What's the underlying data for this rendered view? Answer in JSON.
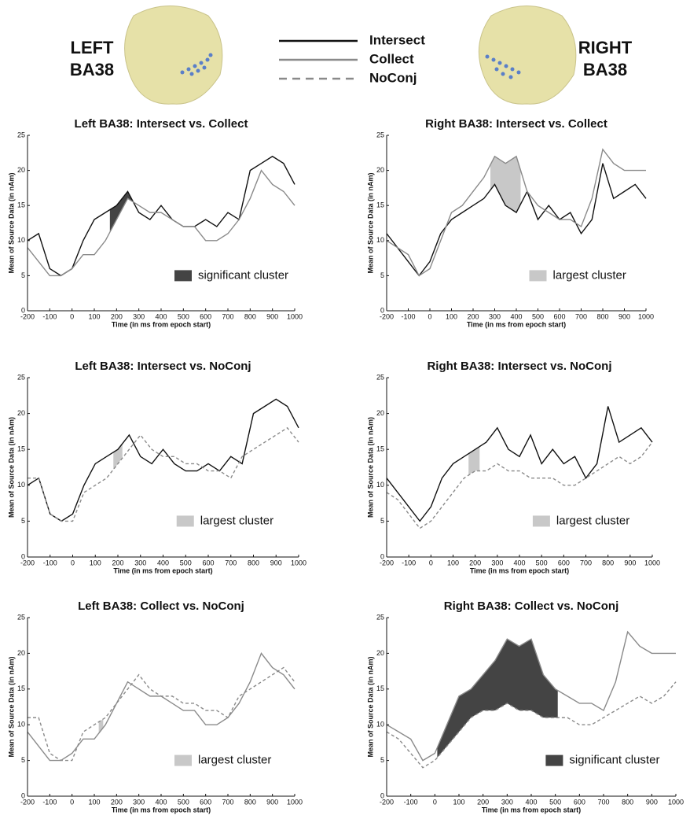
{
  "header": {
    "left": [
      "LEFT",
      "BA38"
    ],
    "right": [
      "RIGHT",
      "BA38"
    ]
  },
  "chart_data": [
    {
      "type": "line",
      "title": "Left BA38: Intersect vs. Collect",
      "xlabel": "Time (in ms from epoch start)",
      "ylabel": "Mean of Source Data (in nAm)",
      "x": [
        -200,
        -150,
        -100,
        -50,
        0,
        50,
        100,
        150,
        200,
        250,
        300,
        350,
        400,
        450,
        500,
        550,
        600,
        650,
        700,
        750,
        800,
        850,
        900,
        950,
        1000
      ],
      "series": [
        {
          "name": "Intersect",
          "color": "#111111",
          "dashed": false,
          "values": [
            10,
            11,
            6,
            5,
            6,
            10,
            13,
            14,
            15,
            17,
            14,
            13,
            15,
            13,
            12,
            12,
            13,
            12,
            14,
            13,
            20,
            21,
            22,
            21,
            18
          ]
        },
        {
          "name": "Collect",
          "color": "#8a8a8a",
          "dashed": false,
          "values": [
            9,
            7,
            5,
            5,
            6,
            8,
            8,
            10,
            13,
            16,
            15,
            14,
            14,
            13,
            12,
            12,
            10,
            10,
            11,
            13,
            16,
            20,
            18,
            17,
            15
          ]
        }
      ],
      "cluster": {
        "label": "significant cluster",
        "color": "#444444",
        "x_range": [
          170,
          270
        ]
      },
      "xlim": [
        -200,
        1000
      ],
      "ylim": [
        0,
        25
      ],
      "xticks": [
        -200,
        -100,
        0,
        100,
        200,
        300,
        400,
        500,
        600,
        700,
        800,
        900,
        1000
      ],
      "yticks": [
        0,
        5,
        10,
        15,
        20,
        25
      ]
    },
    {
      "type": "line",
      "title": "Right BA38: Intersect vs. Collect",
      "xlabel": "Time (in ms from epoch start)",
      "ylabel": "Mean of Source Data (in nAm)",
      "x": [
        -200,
        -150,
        -100,
        -50,
        0,
        50,
        100,
        150,
        200,
        250,
        300,
        350,
        400,
        450,
        500,
        550,
        600,
        650,
        700,
        750,
        800,
        850,
        900,
        950,
        1000
      ],
      "series": [
        {
          "name": "Intersect",
          "color": "#111111",
          "dashed": false,
          "values": [
            11,
            9,
            7,
            5,
            7,
            11,
            13,
            14,
            15,
            16,
            18,
            15,
            14,
            17,
            13,
            15,
            13,
            14,
            11,
            13,
            21,
            16,
            17,
            18,
            16
          ]
        },
        {
          "name": "Collect",
          "color": "#8a8a8a",
          "dashed": false,
          "values": [
            10,
            9,
            8,
            5,
            6,
            10,
            14,
            15,
            17,
            19,
            22,
            21,
            22,
            17,
            15,
            14,
            13,
            13,
            12,
            16,
            23,
            21,
            20,
            20,
            20
          ]
        }
      ],
      "cluster": {
        "label": "largest cluster",
        "color": "#c8c8c8",
        "x_range": [
          280,
          420
        ]
      },
      "xlim": [
        -200,
        1000
      ],
      "ylim": [
        0,
        25
      ],
      "xticks": [
        -200,
        -100,
        0,
        100,
        200,
        300,
        400,
        500,
        600,
        700,
        800,
        900,
        1000
      ],
      "yticks": [
        0,
        5,
        10,
        15,
        20,
        25
      ]
    },
    {
      "type": "line",
      "title": "Left BA38: Intersect vs. NoConj",
      "xlabel": "Time (in ms from epoch start)",
      "ylabel": "Mean of Source Data (in nAm)",
      "x": [
        -200,
        -150,
        -100,
        -50,
        0,
        50,
        100,
        150,
        200,
        250,
        300,
        350,
        400,
        450,
        500,
        550,
        600,
        650,
        700,
        750,
        800,
        850,
        900,
        950,
        1000
      ],
      "series": [
        {
          "name": "Intersect",
          "color": "#111111",
          "dashed": false,
          "values": [
            10,
            11,
            6,
            5,
            6,
            10,
            13,
            14,
            15,
            17,
            14,
            13,
            15,
            13,
            12,
            12,
            13,
            12,
            14,
            13,
            20,
            21,
            22,
            21,
            18
          ]
        },
        {
          "name": "NoConj",
          "color": "#8a8a8a",
          "dashed": true,
          "values": [
            11,
            11,
            6,
            5,
            5,
            9,
            10,
            11,
            13,
            15,
            17,
            15,
            14,
            14,
            13,
            13,
            12,
            12,
            11,
            14,
            15,
            16,
            17,
            18,
            16
          ]
        }
      ],
      "cluster": {
        "label": "largest cluster",
        "color": "#c8c8c8",
        "x_range": [
          180,
          220
        ]
      },
      "xlim": [
        -200,
        1000
      ],
      "ylim": [
        0,
        25
      ],
      "xticks": [
        -200,
        -100,
        0,
        100,
        200,
        300,
        400,
        500,
        600,
        700,
        800,
        900,
        1000
      ],
      "yticks": [
        0,
        5,
        10,
        15,
        20,
        25
      ]
    },
    {
      "type": "line",
      "title": "Right BA38: Intersect vs. NoConj",
      "xlabel": "Time (in ms from epoch start)",
      "ylabel": "Mean of Source Data (in nAm)",
      "x": [
        -200,
        -150,
        -100,
        -50,
        0,
        50,
        100,
        150,
        200,
        250,
        300,
        350,
        400,
        450,
        500,
        550,
        600,
        650,
        700,
        750,
        800,
        850,
        900,
        950,
        1000
      ],
      "series": [
        {
          "name": "Intersect",
          "color": "#111111",
          "dashed": false,
          "values": [
            11,
            9,
            7,
            5,
            7,
            11,
            13,
            14,
            15,
            16,
            18,
            15,
            14,
            17,
            13,
            15,
            13,
            14,
            11,
            13,
            21,
            16,
            17,
            18,
            16
          ]
        },
        {
          "name": "NoConj",
          "color": "#8a8a8a",
          "dashed": true,
          "values": [
            9,
            8,
            6,
            4,
            5,
            7,
            9,
            11,
            12,
            12,
            13,
            12,
            12,
            11,
            11,
            11,
            10,
            10,
            11,
            12,
            13,
            14,
            13,
            14,
            16
          ]
        }
      ],
      "cluster": {
        "label": "largest cluster",
        "color": "#c8c8c8",
        "x_range": [
          170,
          220
        ]
      },
      "xlim": [
        -200,
        1000
      ],
      "ylim": [
        0,
        25
      ],
      "xticks": [
        -200,
        -100,
        0,
        100,
        200,
        300,
        400,
        500,
        600,
        700,
        800,
        900,
        1000
      ],
      "yticks": [
        0,
        5,
        10,
        15,
        20,
        25
      ]
    },
    {
      "type": "line",
      "title": "Left BA38: Collect vs. NoConj",
      "xlabel": "Time (in ms from epoch start)",
      "ylabel": "Mean of Source Data (in nAm)",
      "x": [
        -200,
        -150,
        -100,
        -50,
        0,
        50,
        100,
        150,
        200,
        250,
        300,
        350,
        400,
        450,
        500,
        550,
        600,
        650,
        700,
        750,
        800,
        850,
        900,
        950,
        1000
      ],
      "series": [
        {
          "name": "Collect",
          "color": "#8a8a8a",
          "dashed": false,
          "values": [
            9,
            7,
            5,
            5,
            6,
            8,
            8,
            10,
            13,
            16,
            15,
            14,
            14,
            13,
            12,
            12,
            10,
            10,
            11,
            13,
            16,
            20,
            18,
            17,
            15
          ]
        },
        {
          "name": "NoConj",
          "color": "#8a8a8a",
          "dashed": true,
          "values": [
            11,
            11,
            6,
            5,
            5,
            9,
            10,
            11,
            13,
            15,
            17,
            15,
            14,
            14,
            13,
            13,
            12,
            12,
            11,
            14,
            15,
            16,
            17,
            18,
            16
          ]
        }
      ],
      "cluster": {
        "label": "largest cluster",
        "color": "#c8c8c8",
        "x_range": [
          120,
          140
        ]
      },
      "xlim": [
        -200,
        1000
      ],
      "ylim": [
        0,
        25
      ],
      "xticks": [
        -200,
        -100,
        0,
        100,
        200,
        300,
        400,
        500,
        600,
        700,
        800,
        900,
        1000
      ],
      "yticks": [
        0,
        5,
        10,
        15,
        20,
        25
      ]
    },
    {
      "type": "line",
      "title": "Right BA38: Collect vs. NoConj",
      "xlabel": "Time (in ms from epoch start)",
      "ylabel": "Mean of Source Data (in nAm)",
      "x": [
        -200,
        -150,
        -100,
        -50,
        0,
        50,
        100,
        150,
        200,
        250,
        300,
        350,
        400,
        450,
        500,
        550,
        600,
        650,
        700,
        750,
        800,
        850,
        900,
        950,
        1000
      ],
      "series": [
        {
          "name": "Collect",
          "color": "#8a8a8a",
          "dashed": false,
          "values": [
            10,
            9,
            8,
            5,
            6,
            10,
            14,
            15,
            17,
            19,
            22,
            21,
            22,
            17,
            15,
            14,
            13,
            13,
            12,
            16,
            23,
            21,
            20,
            20,
            20
          ]
        },
        {
          "name": "NoConj",
          "color": "#8a8a8a",
          "dashed": true,
          "values": [
            9,
            8,
            6,
            4,
            5,
            7,
            9,
            11,
            12,
            12,
            13,
            12,
            12,
            11,
            11,
            11,
            10,
            10,
            11,
            12,
            13,
            14,
            13,
            14,
            16
          ]
        }
      ],
      "cluster": {
        "label": "significant cluster",
        "color": "#444444",
        "x_range": [
          10,
          510
        ]
      },
      "xlim": [
        -200,
        1000
      ],
      "ylim": [
        0,
        25
      ],
      "xticks": [
        -200,
        -100,
        0,
        100,
        200,
        300,
        400,
        500,
        600,
        700,
        800,
        900,
        1000
      ],
      "yticks": [
        0,
        5,
        10,
        15,
        20,
        25
      ]
    }
  ]
}
